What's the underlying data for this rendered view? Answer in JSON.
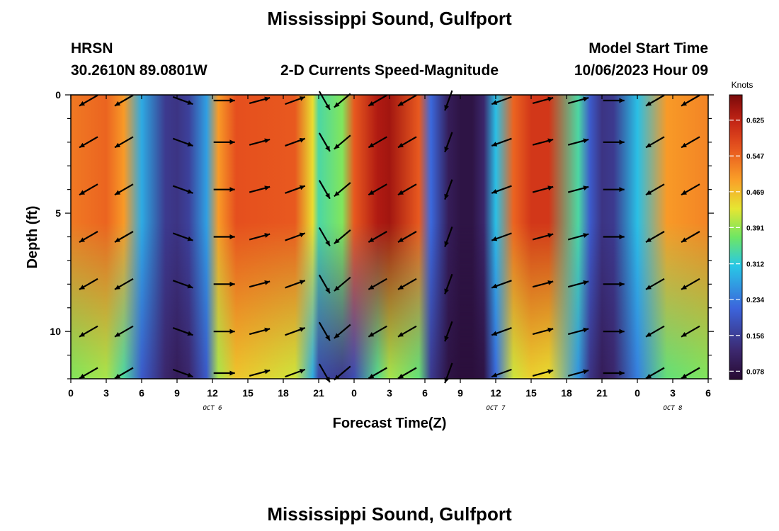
{
  "chart_data": {
    "type": "heatmap",
    "title": "Mississippi Sound, Gulfport",
    "subtitle": "2-D Currents Speed-Magnitude",
    "station": {
      "code": "HRSN",
      "coords": "30.2610N  89.0801W"
    },
    "model_start": {
      "label": "Model Start Time",
      "value": "10/06/2023 Hour 09"
    },
    "xlabel": "Forecast Time(Z)",
    "ylabel": "Depth (ft)",
    "x_hour_range": [
      0,
      54
    ],
    "y_range": [
      0,
      12
    ],
    "y_inverted": true,
    "x_ticks": [
      "0",
      "3",
      "6",
      "9",
      "12",
      "15",
      "18",
      "21",
      "0",
      "3",
      "6",
      "9",
      "12",
      "15",
      "18",
      "21",
      "0",
      "3",
      "6"
    ],
    "y_ticks": [
      "0",
      "5",
      "10"
    ],
    "date_labels": [
      {
        "text": "OCT 6",
        "hour": 12
      },
      {
        "text": "OCT 7",
        "hour": 36
      },
      {
        "text": "OCT 8",
        "hour": 51
      }
    ],
    "colorbar": {
      "unit": "Knots",
      "min": 0.06,
      "max": 0.68,
      "ticks": [
        "0.625",
        "0.547",
        "0.469",
        "0.391",
        "0.312",
        "0.234",
        "0.156",
        "0.078"
      ]
    },
    "speed_profile_hours": [
      0,
      3,
      4.5,
      6,
      8,
      9,
      10,
      11.5,
      12.5,
      14,
      19,
      20.5,
      21,
      23,
      24,
      26,
      27,
      29.5,
      30.5,
      32,
      33,
      34,
      35,
      36,
      37.5,
      39,
      40.5,
      43,
      44,
      45,
      46,
      48,
      50.5,
      54
    ],
    "speed_profile_surface": [
      0.53,
      0.55,
      0.5,
      0.28,
      0.15,
      0.14,
      0.16,
      0.27,
      0.5,
      0.57,
      0.56,
      0.44,
      0.34,
      0.38,
      0.56,
      0.64,
      0.65,
      0.56,
      0.22,
      0.1,
      0.08,
      0.08,
      0.12,
      0.3,
      0.55,
      0.6,
      0.6,
      0.34,
      0.2,
      0.14,
      0.15,
      0.3,
      0.5,
      0.52
    ],
    "speed_profile_bottom": [
      0.38,
      0.4,
      0.34,
      0.2,
      0.12,
      0.1,
      0.12,
      0.2,
      0.4,
      0.46,
      0.42,
      0.28,
      0.17,
      0.15,
      0.18,
      0.35,
      0.4,
      0.36,
      0.15,
      0.08,
      0.07,
      0.07,
      0.08,
      0.22,
      0.42,
      0.45,
      0.44,
      0.26,
      0.14,
      0.1,
      0.12,
      0.24,
      0.36,
      0.38
    ],
    "arrow_hours": [
      1.5,
      4.5,
      9.5,
      13,
      16,
      19,
      21.5,
      23,
      26,
      28.5,
      32,
      36.5,
      40,
      43,
      46,
      49.5,
      52.5
    ],
    "arrow_depths": [
      0,
      2,
      4,
      6,
      8,
      10,
      12
    ],
    "arrow_directions_deg": [
      210,
      210,
      340,
      0,
      15,
      20,
      300,
      220,
      210,
      210,
      250,
      200,
      15,
      15,
      0,
      210,
      210
    ]
  },
  "footer_title": "Mississippi Sound, Gulfport"
}
